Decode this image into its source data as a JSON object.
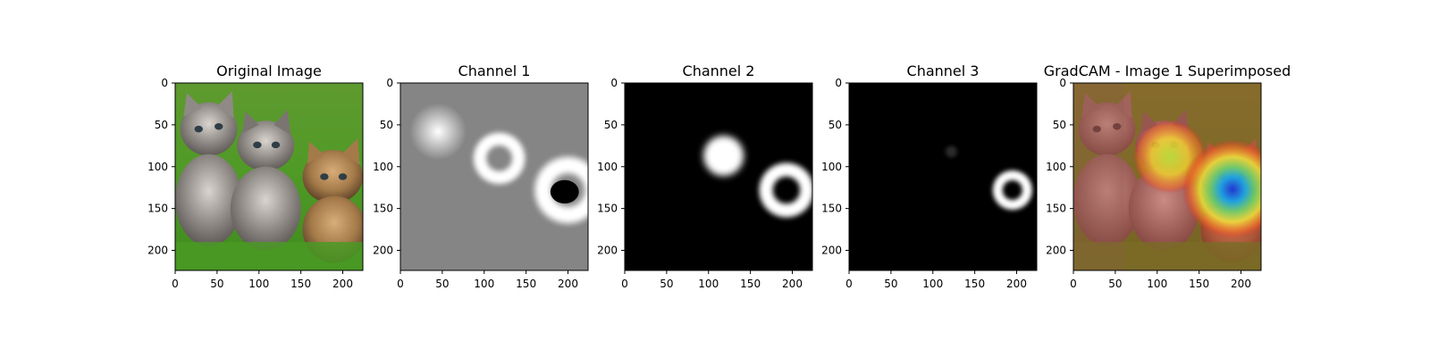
{
  "figure": {
    "panels": [
      {
        "title": "Original Image",
        "kind": "original",
        "xticks": [
          "0",
          "50",
          "100",
          "150",
          "200"
        ],
        "yticks": [
          "0",
          "50",
          "100",
          "150",
          "200"
        ]
      },
      {
        "title": "Channel 1",
        "kind": "channel1",
        "xticks": [
          "0",
          "50",
          "100",
          "150",
          "200"
        ],
        "yticks": [
          "0",
          "50",
          "100",
          "150",
          "200"
        ]
      },
      {
        "title": "Channel 2",
        "kind": "channel2",
        "xticks": [
          "0",
          "50",
          "100",
          "150",
          "200"
        ],
        "yticks": [
          "0",
          "50",
          "100",
          "150",
          "200"
        ]
      },
      {
        "title": "Channel 3",
        "kind": "channel3",
        "xticks": [
          "0",
          "50",
          "100",
          "150",
          "200"
        ],
        "yticks": [
          "0",
          "50",
          "100",
          "150",
          "200"
        ]
      },
      {
        "title": "GradCAM - Image 1 Superimposed",
        "kind": "gradcam",
        "xticks": [
          "0",
          "50",
          "100",
          "150",
          "200"
        ],
        "yticks": [
          "0",
          "50",
          "100",
          "150",
          "200"
        ]
      }
    ],
    "tick_values": [
      0,
      50,
      100,
      150,
      200
    ],
    "image_extent": 224
  }
}
